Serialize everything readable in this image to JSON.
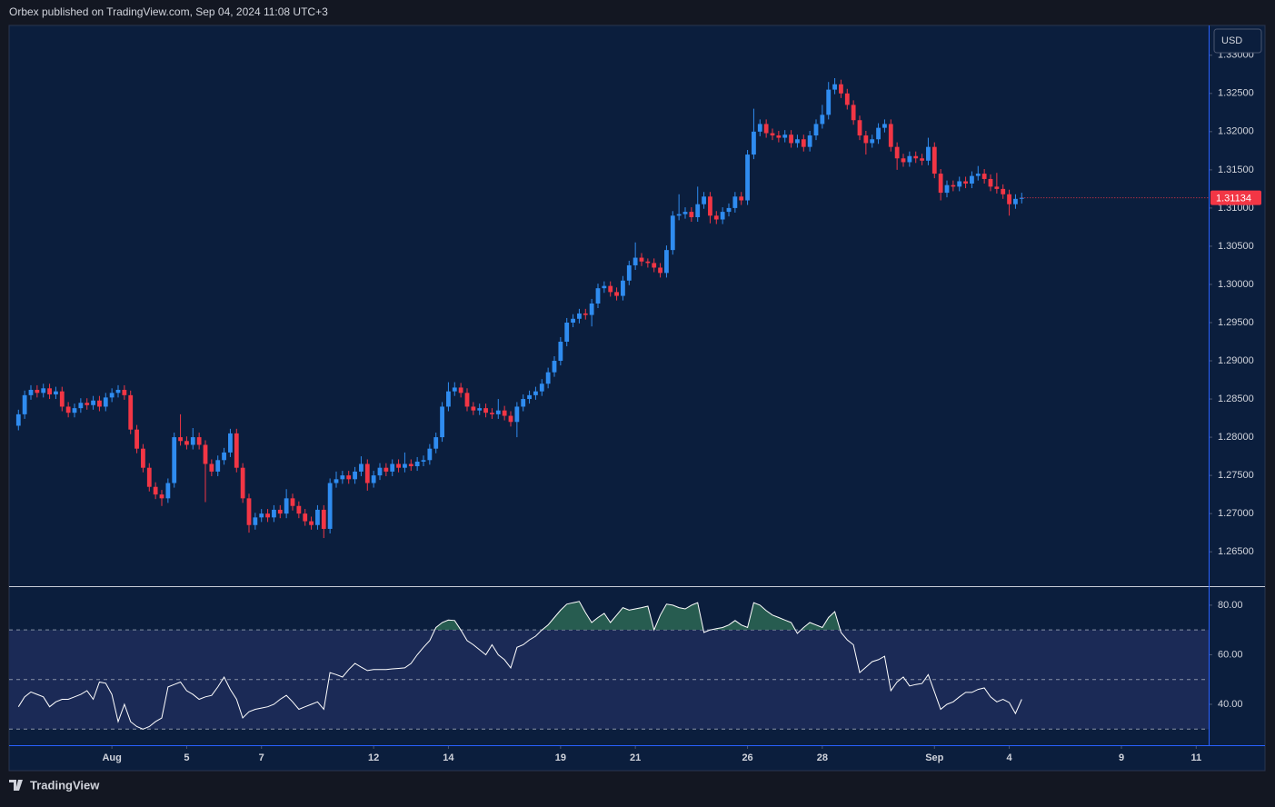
{
  "header": "Orbex published on TradingView.com, Sep 04, 2024 11:08 UTC+3",
  "brand": "TradingView",
  "chart_data": [
    {
      "type": "candlestick",
      "currency": "USD",
      "up_color": "#2f8cf0",
      "down_color": "#f23645",
      "last_price_color": "#f23645",
      "ylim": [
        1.2605,
        1.3339
      ],
      "yticks": [
        {
          "value": 1.265,
          "label": "1.26500"
        },
        {
          "value": 1.27,
          "label": "1.27000"
        },
        {
          "value": 1.275,
          "label": "1.27500"
        },
        {
          "value": 1.28,
          "label": "1.28000"
        },
        {
          "value": 1.285,
          "label": "1.28500"
        },
        {
          "value": 1.29,
          "label": "1.29000"
        },
        {
          "value": 1.295,
          "label": "1.29500"
        },
        {
          "value": 1.3,
          "label": "1.30000"
        },
        {
          "value": 1.305,
          "label": "1.30500"
        },
        {
          "value": 1.31,
          "label": "1.31000"
        },
        {
          "value": 1.315,
          "label": "1.31500"
        },
        {
          "value": 1.32,
          "label": "1.32000"
        },
        {
          "value": 1.325,
          "label": "1.32500"
        },
        {
          "value": 1.33,
          "label": "1.33000"
        }
      ],
      "open": [
        1.2815,
        1.283,
        1.2855,
        1.2862,
        1.2858,
        1.2864,
        1.2856,
        1.286,
        1.284,
        1.2832,
        1.2838,
        1.2845,
        1.2842,
        1.2848,
        1.284,
        1.2852,
        1.2858,
        1.2862,
        1.2855,
        1.281,
        1.2785,
        1.276,
        1.2735,
        1.2725,
        1.272,
        1.274,
        1.28,
        1.2795,
        1.279,
        1.28,
        1.279,
        1.2765,
        1.2755,
        1.277,
        1.278,
        1.2805,
        1.276,
        1.272,
        1.2685,
        1.2695,
        1.27,
        1.2695,
        1.2705,
        1.27,
        1.272,
        1.271,
        1.27,
        1.269,
        1.2685,
        1.2705,
        1.268,
        1.274,
        1.2745,
        1.275,
        1.2745,
        1.2755,
        1.2765,
        1.274,
        1.275,
        1.276,
        1.2755,
        1.2765,
        1.276,
        1.2765,
        1.2762,
        1.2768,
        1.277,
        1.2785,
        1.28,
        1.284,
        1.286,
        1.2865,
        1.2858,
        1.284,
        1.2835,
        1.2838,
        1.2832,
        1.283,
        1.2835,
        1.2828,
        1.282,
        1.284,
        1.285,
        1.2855,
        1.286,
        1.287,
        1.2885,
        1.29,
        1.2925,
        1.295,
        1.2955,
        1.2962,
        1.296,
        1.2975,
        1.2995,
        1.2998,
        1.299,
        1.2985,
        1.3005,
        1.3025,
        1.3035,
        1.303,
        1.3028,
        1.3022,
        1.3015,
        1.3045,
        1.309,
        1.3092,
        1.3095,
        1.3088,
        1.3105,
        1.3115,
        1.309,
        1.3085,
        1.3095,
        1.31,
        1.3115,
        1.311,
        1.317,
        1.32,
        1.321,
        1.3198,
        1.3195,
        1.3192,
        1.3196,
        1.3185,
        1.319,
        1.318,
        1.3195,
        1.321,
        1.3222,
        1.3255,
        1.3262,
        1.325,
        1.3235,
        1.3215,
        1.3195,
        1.3185,
        1.319,
        1.3205,
        1.321,
        1.318,
        1.3165,
        1.316,
        1.3168,
        1.3165,
        1.3162,
        1.318,
        1.3145,
        1.312,
        1.313,
        1.3128,
        1.3135,
        1.3132,
        1.3142,
        1.3145,
        1.3138,
        1.3128,
        1.3125,
        1.3118,
        1.3105,
        1.3112
      ],
      "high": [
        1.2836,
        1.2861,
        1.2868,
        1.2868,
        1.287,
        1.287,
        1.2866,
        1.2866,
        1.2846,
        1.2844,
        1.2851,
        1.2851,
        1.2854,
        1.2854,
        1.2858,
        1.2864,
        1.2868,
        1.2868,
        1.2861,
        1.2816,
        1.2791,
        1.2766,
        1.2741,
        1.2731,
        1.2746,
        1.2806,
        1.283,
        1.2801,
        1.2812,
        1.2806,
        1.2796,
        1.2771,
        1.2776,
        1.2786,
        1.2811,
        1.2811,
        1.2766,
        1.2726,
        1.2701,
        1.2706,
        1.2706,
        1.2711,
        1.2711,
        1.2732,
        1.2726,
        1.2716,
        1.2706,
        1.2696,
        1.2711,
        1.2711,
        1.2746,
        1.2755,
        1.2756,
        1.2756,
        1.2761,
        1.2775,
        1.2771,
        1.2756,
        1.2766,
        1.2766,
        1.2771,
        1.2771,
        1.278,
        1.2771,
        1.2774,
        1.2776,
        1.2791,
        1.2806,
        1.2846,
        1.2872,
        1.2872,
        1.2871,
        1.2864,
        1.2846,
        1.2844,
        1.2844,
        1.2838,
        1.285,
        1.2841,
        1.2834,
        1.2846,
        1.2856,
        1.2861,
        1.2866,
        1.2876,
        1.2891,
        1.2906,
        1.2931,
        1.2956,
        1.2961,
        1.2968,
        1.2968,
        1.2981,
        1.3001,
        1.3004,
        1.3004,
        1.2996,
        1.3011,
        1.3031,
        1.3055,
        1.3041,
        1.3034,
        1.3034,
        1.3028,
        1.3051,
        1.3096,
        1.3118,
        1.3101,
        1.3101,
        1.3128,
        1.3121,
        1.3121,
        1.3096,
        1.3101,
        1.3106,
        1.3121,
        1.3121,
        1.3176,
        1.323,
        1.3216,
        1.3216,
        1.3204,
        1.3201,
        1.3202,
        1.3202,
        1.3196,
        1.3196,
        1.3201,
        1.3216,
        1.3235,
        1.3265,
        1.327,
        1.3268,
        1.3256,
        1.3241,
        1.3221,
        1.3201,
        1.3196,
        1.3211,
        1.3216,
        1.3216,
        1.3186,
        1.3171,
        1.3174,
        1.3174,
        1.3171,
        1.3192,
        1.3186,
        1.3151,
        1.3136,
        1.3136,
        1.3141,
        1.3141,
        1.3148,
        1.3155,
        1.3151,
        1.3144,
        1.3146,
        1.3131,
        1.3124,
        1.3118,
        1.312
      ],
      "low": [
        1.2809,
        1.2824,
        1.2849,
        1.2852,
        1.2852,
        1.285,
        1.285,
        1.2834,
        1.2826,
        1.2826,
        1.2832,
        1.2836,
        1.2836,
        1.2834,
        1.2834,
        1.2846,
        1.2852,
        1.2849,
        1.2804,
        1.2779,
        1.2754,
        1.2729,
        1.2719,
        1.271,
        1.2714,
        1.2734,
        1.2789,
        1.2784,
        1.2784,
        1.2784,
        1.2715,
        1.2749,
        1.2749,
        1.2764,
        1.2774,
        1.2754,
        1.2714,
        1.2675,
        1.2679,
        1.2689,
        1.2689,
        1.2689,
        1.2694,
        1.2694,
        1.2704,
        1.2694,
        1.2684,
        1.2679,
        1.2679,
        1.2668,
        1.2674,
        1.2734,
        1.2739,
        1.2739,
        1.2739,
        1.2749,
        1.273,
        1.2734,
        1.2744,
        1.2749,
        1.2749,
        1.2754,
        1.2754,
        1.2756,
        1.2756,
        1.2762,
        1.2764,
        1.2779,
        1.2794,
        1.2834,
        1.2854,
        1.2852,
        1.2834,
        1.2829,
        1.2829,
        1.2826,
        1.2824,
        1.2824,
        1.2822,
        1.2814,
        1.28,
        1.2834,
        1.2844,
        1.2849,
        1.2854,
        1.2864,
        1.2879,
        1.2894,
        1.2919,
        1.2944,
        1.2949,
        1.2954,
        1.2945,
        1.2969,
        1.2989,
        1.2984,
        1.2979,
        1.2979,
        1.2999,
        1.3019,
        1.3024,
        1.3022,
        1.3016,
        1.3009,
        1.3009,
        1.3039,
        1.3084,
        1.3086,
        1.3082,
        1.3082,
        1.3099,
        1.308,
        1.3079,
        1.3079,
        1.3089,
        1.3094,
        1.3104,
        1.3104,
        1.3164,
        1.3194,
        1.3192,
        1.3189,
        1.3186,
        1.3186,
        1.3179,
        1.3179,
        1.3174,
        1.3174,
        1.3189,
        1.3204,
        1.3216,
        1.3249,
        1.3244,
        1.3229,
        1.3209,
        1.3189,
        1.317,
        1.3179,
        1.3184,
        1.3199,
        1.3174,
        1.315,
        1.3154,
        1.3154,
        1.3159,
        1.3156,
        1.3156,
        1.3139,
        1.311,
        1.3114,
        1.3122,
        1.3122,
        1.3126,
        1.3126,
        1.3136,
        1.3132,
        1.3122,
        1.3119,
        1.3112,
        1.309,
        1.3099,
        1.3106
      ],
      "close": [
        1.283,
        1.2855,
        1.2862,
        1.2858,
        1.2864,
        1.2856,
        1.286,
        1.284,
        1.2832,
        1.2838,
        1.2845,
        1.2842,
        1.2848,
        1.284,
        1.2852,
        1.2858,
        1.2862,
        1.2855,
        1.281,
        1.2785,
        1.276,
        1.2735,
        1.2725,
        1.272,
        1.274,
        1.28,
        1.2795,
        1.279,
        1.28,
        1.279,
        1.2765,
        1.2755,
        1.277,
        1.278,
        1.2805,
        1.276,
        1.272,
        1.2685,
        1.2695,
        1.27,
        1.2695,
        1.2705,
        1.27,
        1.272,
        1.271,
        1.27,
        1.269,
        1.2685,
        1.2705,
        1.268,
        1.274,
        1.2745,
        1.275,
        1.2745,
        1.2755,
        1.2765,
        1.274,
        1.275,
        1.276,
        1.2755,
        1.2765,
        1.276,
        1.2765,
        1.2762,
        1.2768,
        1.277,
        1.2785,
        1.28,
        1.284,
        1.286,
        1.2865,
        1.2858,
        1.284,
        1.2835,
        1.2838,
        1.2832,
        1.283,
        1.2835,
        1.2828,
        1.282,
        1.284,
        1.285,
        1.2855,
        1.286,
        1.287,
        1.2885,
        1.29,
        1.2925,
        1.295,
        1.2955,
        1.2962,
        1.296,
        1.2975,
        1.2995,
        1.2998,
        1.299,
        1.2985,
        1.3005,
        1.3025,
        1.3035,
        1.303,
        1.3028,
        1.3022,
        1.3015,
        1.3045,
        1.309,
        1.3092,
        1.3095,
        1.3088,
        1.3105,
        1.3115,
        1.309,
        1.3085,
        1.3095,
        1.31,
        1.3115,
        1.311,
        1.317,
        1.32,
        1.321,
        1.3198,
        1.3195,
        1.3192,
        1.3196,
        1.3185,
        1.319,
        1.318,
        1.3195,
        1.321,
        1.3222,
        1.3255,
        1.3262,
        1.325,
        1.3235,
        1.3215,
        1.3195,
        1.3185,
        1.319,
        1.3205,
        1.321,
        1.318,
        1.3165,
        1.316,
        1.3168,
        1.3165,
        1.3162,
        1.318,
        1.3145,
        1.312,
        1.313,
        1.3128,
        1.3135,
        1.3132,
        1.3142,
        1.3145,
        1.3138,
        1.3128,
        1.3125,
        1.3118,
        1.3105,
        1.3112,
        1.31134
      ]
    },
    {
      "type": "line",
      "color": "#ffffff",
      "band_color": "#1b2a56",
      "overbought_color": "#2e6b55",
      "ylim": [
        23.5,
        87.3
      ],
      "yticks": [
        {
          "value": 40,
          "label": "40.00"
        },
        {
          "value": 60,
          "label": "60.00"
        },
        {
          "value": 80,
          "label": "80.00"
        }
      ],
      "bands": [
        30,
        50,
        70
      ],
      "xlim": [
        -1.5,
        191
      ],
      "xticks": [
        {
          "value": 15,
          "label": "Aug"
        },
        {
          "value": 27,
          "label": "5"
        },
        {
          "value": 39,
          "label": "7"
        },
        {
          "value": 57,
          "label": "12"
        },
        {
          "value": 69,
          "label": "14"
        },
        {
          "value": 87,
          "label": "19"
        },
        {
          "value": 99,
          "label": "21"
        },
        {
          "value": 117,
          "label": "26"
        },
        {
          "value": 129,
          "label": "28"
        },
        {
          "value": 147,
          "label": "Sep"
        },
        {
          "value": 159,
          "label": "4"
        },
        {
          "value": 177,
          "label": "9"
        },
        {
          "value": 189,
          "label": "11"
        }
      ],
      "values": [
        39,
        43,
        45,
        44,
        43,
        39,
        41,
        42,
        42,
        43,
        44,
        45.5,
        42,
        49,
        48.5,
        44,
        33,
        40,
        33,
        31,
        30,
        31,
        33,
        34.5,
        47,
        48,
        49,
        45.5,
        44,
        42,
        43,
        43.6,
        47,
        51,
        46,
        42,
        34.5,
        37,
        38,
        38.5,
        39,
        40,
        42,
        43.6,
        41,
        38,
        39,
        40,
        41,
        38,
        52.8,
        52,
        51,
        54,
        56.5,
        55,
        53.6,
        54,
        54,
        54,
        54.3,
        54.5,
        54.7,
        56.5,
        60,
        63,
        65.7,
        71,
        73,
        74,
        73.8,
        70,
        65.7,
        64,
        62,
        60,
        64,
        60,
        58,
        54.7,
        63,
        64,
        66,
        67.5,
        70,
        72,
        75,
        78,
        80.4,
        81,
        81.5,
        77,
        73,
        75,
        76.7,
        73,
        76,
        79,
        78,
        78.5,
        79,
        79.6,
        70,
        76,
        80.4,
        80,
        79,
        78.5,
        80,
        81,
        69,
        70,
        70.5,
        71,
        72,
        73.8,
        72,
        71,
        81,
        80,
        77.8,
        76,
        75,
        74,
        73,
        68.6,
        71,
        73,
        72,
        71,
        75,
        77.4,
        69,
        66,
        64,
        52.8,
        55,
        57.2,
        58,
        59.4,
        45.5,
        49,
        51,
        47.4,
        48,
        48.4,
        52,
        45,
        38,
        40,
        41,
        43,
        44.8,
        44.8,
        46,
        46.6,
        43,
        41,
        42,
        40.7,
        36.3,
        42
      ]
    }
  ]
}
